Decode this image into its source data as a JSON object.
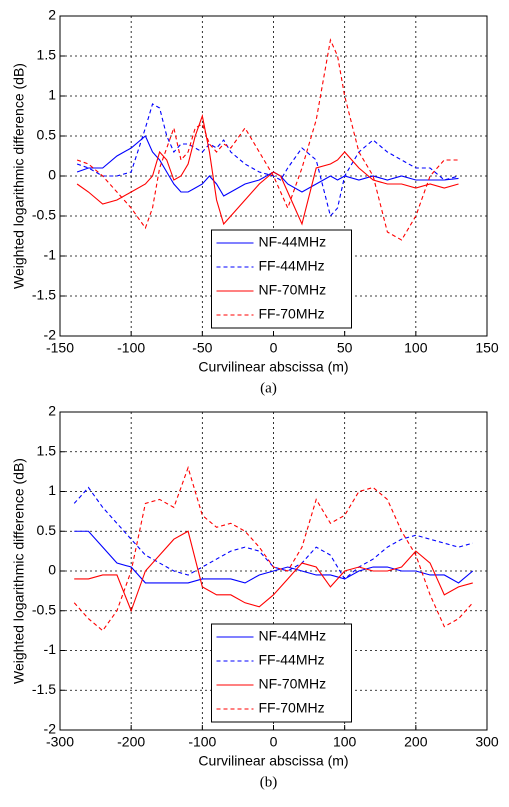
{
  "chart_data": [
    {
      "type": "line",
      "xlabel": "Curvilinear abscissa (m)",
      "ylabel": "Weighted logarithmic difference (dB)",
      "caption": "(a)",
      "x": [
        -138,
        -130,
        -120,
        -110,
        -100,
        -90,
        -85,
        -80,
        -75,
        -70,
        -65,
        -60,
        -55,
        -50,
        -45,
        -40,
        -35,
        -30,
        -20,
        -10,
        0,
        5,
        10,
        20,
        30,
        40,
        45,
        50,
        60,
        70,
        80,
        90,
        100,
        110,
        120,
        130
      ],
      "series": [
        {
          "name": "NF-44MHz",
          "color": "#0000ff",
          "linestyle": "solid",
          "values": [
            0.05,
            0.1,
            0.1,
            0.25,
            0.35,
            0.5,
            0.3,
            0.2,
            0.05,
            -0.1,
            -0.2,
            -0.2,
            -0.15,
            -0.1,
            0,
            -0.1,
            -0.25,
            -0.2,
            -0.1,
            -0.05,
            0.05,
            0,
            -0.1,
            -0.2,
            -0.1,
            0,
            -0.05,
            0,
            -0.05,
            0,
            -0.05,
            0,
            -0.05,
            -0.05,
            -0.05,
            -0.03
          ]
        },
        {
          "name": "FF-44MHz",
          "color": "#0000ff",
          "linestyle": "dashed",
          "values": [
            0.15,
            0.1,
            0,
            0,
            0.05,
            0.6,
            0.9,
            0.85,
            0.5,
            0.3,
            0.4,
            0.4,
            0.35,
            0.3,
            0.4,
            0.35,
            0.45,
            0.3,
            0.15,
            0.05,
            0,
            -0.05,
            0.1,
            0.35,
            0.2,
            -0.5,
            -0.4,
            0,
            0.3,
            0.45,
            0.3,
            0.2,
            0.1,
            0.1,
            -0.05,
            0
          ]
        },
        {
          "name": "NF-70MHz",
          "color": "#ff0000",
          "linestyle": "solid",
          "values": [
            -0.1,
            -0.2,
            -0.35,
            -0.3,
            -0.2,
            -0.1,
            0,
            0.3,
            0.2,
            -0.05,
            0,
            0.15,
            0.5,
            0.75,
            0.3,
            -0.3,
            -0.6,
            -0.5,
            -0.3,
            -0.1,
            0.05,
            0,
            -0.2,
            -0.6,
            0.1,
            0.15,
            0.2,
            0.3,
            0.1,
            -0.05,
            -0.1,
            -0.1,
            -0.15,
            -0.1,
            -0.15,
            -0.1
          ]
        },
        {
          "name": "FF-70MHz",
          "color": "#ff0000",
          "linestyle": "dashed",
          "values": [
            0.2,
            0.15,
            0,
            -0.2,
            -0.4,
            -0.65,
            -0.4,
            0.1,
            0.35,
            0.6,
            0.2,
            0.3,
            0.6,
            0.65,
            0.4,
            0.3,
            0.4,
            0.35,
            0.6,
            0.3,
            0,
            -0.2,
            -0.4,
            0.1,
            0.7,
            1.7,
            1.5,
            1.0,
            0.3,
            0,
            -0.7,
            -0.8,
            -0.5,
            0,
            0.2,
            0.2
          ]
        }
      ],
      "xlim": [
        -150,
        150
      ],
      "xticks": [
        -150,
        -100,
        -50,
        0,
        50,
        100,
        150
      ],
      "ylim": [
        -2,
        2
      ],
      "yticks": [
        2,
        1.5,
        1,
        0.5,
        0,
        -0.5,
        -1,
        -1.5,
        -2
      ],
      "grid": true,
      "legend": "lower center"
    },
    {
      "type": "line",
      "xlabel": "Curvilinear abscissa (m)",
      "ylabel": "Weighted logarithmic difference (dB)",
      "caption": "(b)",
      "x": [
        -280,
        -260,
        -240,
        -220,
        -200,
        -180,
        -160,
        -140,
        -120,
        -100,
        -80,
        -60,
        -40,
        -20,
        0,
        20,
        40,
        60,
        80,
        100,
        120,
        140,
        160,
        180,
        200,
        220,
        240,
        260,
        280
      ],
      "series": [
        {
          "name": "NF-44MHz",
          "color": "#0000ff",
          "linestyle": "solid",
          "values": [
            0.5,
            0.5,
            0.3,
            0.1,
            0.05,
            -0.15,
            -0.15,
            -0.15,
            -0.15,
            -0.1,
            -0.1,
            -0.1,
            -0.15,
            -0.05,
            0,
            0.05,
            0,
            -0.05,
            -0.05,
            -0.1,
            0,
            0.05,
            0.05,
            0,
            0,
            -0.05,
            -0.05,
            -0.15,
            0
          ]
        },
        {
          "name": "FF-44MHz",
          "color": "#0000ff",
          "linestyle": "dashed",
          "values": [
            0.85,
            1.05,
            0.8,
            0.6,
            0.4,
            0.2,
            0.1,
            0,
            -0.05,
            0.05,
            0.15,
            0.25,
            0.3,
            0.25,
            0.05,
            0,
            0.1,
            0.3,
            0.2,
            -0.1,
            0.05,
            0.15,
            0.3,
            0.4,
            0.45,
            0.4,
            0.35,
            0.3,
            0.35
          ]
        },
        {
          "name": "NF-70MHz",
          "color": "#ff0000",
          "linestyle": "solid",
          "values": [
            -0.1,
            -0.1,
            -0.05,
            -0.05,
            -0.5,
            0,
            0.2,
            0.4,
            0.5,
            -0.2,
            -0.3,
            -0.3,
            -0.4,
            -0.45,
            -0.3,
            -0.1,
            0.1,
            0.05,
            -0.2,
            0,
            0.05,
            0,
            0,
            0.05,
            0.25,
            0.1,
            -0.3,
            -0.2,
            -0.15
          ]
        },
        {
          "name": "FF-70MHz",
          "color": "#ff0000",
          "linestyle": "dashed",
          "values": [
            -0.4,
            -0.6,
            -0.75,
            -0.5,
            0,
            0.85,
            0.9,
            0.8,
            1.3,
            0.7,
            0.55,
            0.6,
            0.5,
            0.3,
            0.05,
            0,
            0.3,
            0.9,
            0.6,
            0.7,
            1.0,
            1.05,
            0.9,
            0.5,
            0.2,
            -0.3,
            -0.7,
            -0.6,
            -0.4
          ]
        }
      ],
      "xlim": [
        -300,
        300
      ],
      "xticks": [
        -300,
        -200,
        -100,
        0,
        100,
        200,
        300
      ],
      "ylim": [
        -2,
        2
      ],
      "yticks": [
        2,
        1.5,
        1,
        0.5,
        0,
        -0.5,
        -1,
        -1.5,
        -2
      ],
      "grid": true,
      "legend": "lower center"
    }
  ]
}
